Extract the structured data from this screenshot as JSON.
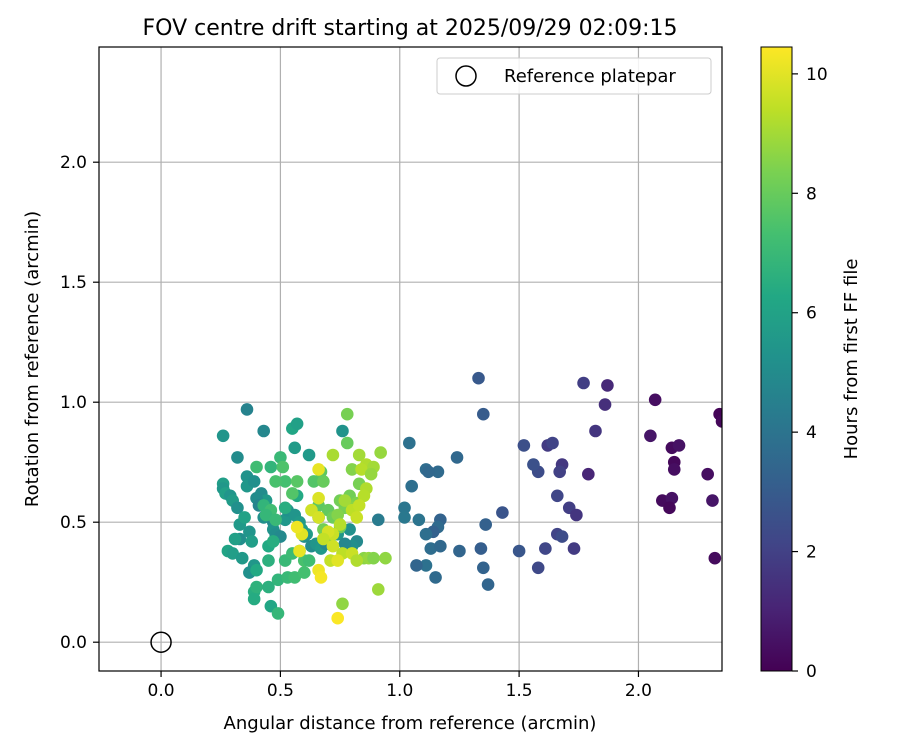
{
  "chart_data": {
    "type": "scatter",
    "title": "FOV centre drift starting at 2025/09/29 02:09:15",
    "xlabel": "Angular distance from reference (arcmin)",
    "ylabel": "Rotation from reference (arcmin)",
    "xlim": [
      -0.26,
      2.35
    ],
    "ylim": [
      -0.12,
      2.48
    ],
    "xticks": [
      0.0,
      0.5,
      1.0,
      1.5,
      2.0
    ],
    "xtick_labels": [
      "0.0",
      "0.5",
      "1.0",
      "1.5",
      "2.0"
    ],
    "yticks": [
      0.0,
      0.5,
      1.0,
      1.5,
      2.0
    ],
    "ytick_labels": [
      "0.0",
      "0.5",
      "1.0",
      "1.5",
      "2.0"
    ],
    "grid": true,
    "legend": {
      "placement": "top-right",
      "label": "Reference platepar"
    },
    "reference_point": {
      "x": 0.0,
      "y": 0.0
    },
    "colorbar": {
      "label": "Hours from first FF file",
      "colormap": "viridis",
      "range": [
        0,
        10.45
      ],
      "ticks": [
        0,
        2,
        4,
        6,
        8,
        10
      ],
      "tick_labels": [
        "0",
        "2",
        "4",
        "6",
        "8",
        "10"
      ]
    },
    "series": [
      {
        "name": "FOV centre",
        "points": [
          [
            2.34,
            0.95,
            0.1
          ],
          [
            2.35,
            0.92,
            0.2
          ],
          [
            2.07,
            1.01,
            0.4
          ],
          [
            2.05,
            0.86,
            0.6
          ],
          [
            2.14,
            0.81,
            0.3
          ],
          [
            2.17,
            0.82,
            0.5
          ],
          [
            2.15,
            0.75,
            0.2
          ],
          [
            2.15,
            0.72,
            0.4
          ],
          [
            2.1,
            0.59,
            0.3
          ],
          [
            2.14,
            0.6,
            0.5
          ],
          [
            2.13,
            0.56,
            0.2
          ],
          [
            2.29,
            0.7,
            0.4
          ],
          [
            2.31,
            0.59,
            0.6
          ],
          [
            2.32,
            0.35,
            0.3
          ],
          [
            1.87,
            1.07,
            1.2
          ],
          [
            1.86,
            0.99,
            1.4
          ],
          [
            1.82,
            0.88,
            1.6
          ],
          [
            1.79,
            0.7,
            1.1
          ],
          [
            1.77,
            1.08,
            1.9
          ],
          [
            1.68,
            0.74,
            1.7
          ],
          [
            1.67,
            0.71,
            2.0
          ],
          [
            1.62,
            0.82,
            1.8
          ],
          [
            1.64,
            0.83,
            2.1
          ],
          [
            1.66,
            0.61,
            2.2
          ],
          [
            1.71,
            0.56,
            1.9
          ],
          [
            1.74,
            0.53,
            1.6
          ],
          [
            1.73,
            0.39,
            1.8
          ],
          [
            1.66,
            0.45,
            2.1
          ],
          [
            1.68,
            0.44,
            2.4
          ],
          [
            1.61,
            0.39,
            2.2
          ],
          [
            1.58,
            0.31,
            2.3
          ],
          [
            1.58,
            0.71,
            2.4
          ],
          [
            1.56,
            0.74,
            2.6
          ],
          [
            1.52,
            0.82,
            2.5
          ],
          [
            1.5,
            0.38,
            2.8
          ],
          [
            1.33,
            1.1,
            2.9
          ],
          [
            1.35,
            0.95,
            3.0
          ],
          [
            1.43,
            0.54,
            2.7
          ],
          [
            1.36,
            0.49,
            3.2
          ],
          [
            1.34,
            0.39,
            3.1
          ],
          [
            1.35,
            0.31,
            3.3
          ],
          [
            1.37,
            0.24,
            3.4
          ],
          [
            1.24,
            0.77,
            3.5
          ],
          [
            1.25,
            0.38,
            3.4
          ],
          [
            1.16,
            0.71,
            3.6
          ],
          [
            1.11,
            0.72,
            3.7
          ],
          [
            1.12,
            0.71,
            3.5
          ],
          [
            1.05,
            0.65,
            3.8
          ],
          [
            1.04,
            0.83,
            3.9
          ],
          [
            1.17,
            0.51,
            3.3
          ],
          [
            1.16,
            0.48,
            3.6
          ],
          [
            1.14,
            0.46,
            3.2
          ],
          [
            1.11,
            0.45,
            3.8
          ],
          [
            1.08,
            0.51,
            4.0
          ],
          [
            1.13,
            0.39,
            3.7
          ],
          [
            1.17,
            0.4,
            3.5
          ],
          [
            1.15,
            0.27,
            3.6
          ],
          [
            1.11,
            0.32,
            3.9
          ],
          [
            1.07,
            0.32,
            3.4
          ],
          [
            1.02,
            0.56,
            4.1
          ],
          [
            1.02,
            0.52,
            4.2
          ],
          [
            0.91,
            0.51,
            4.3
          ],
          [
            0.26,
            0.86,
            5.4
          ],
          [
            0.32,
            0.77,
            5.0
          ],
          [
            0.36,
            0.69,
            5.3
          ],
          [
            0.36,
            0.65,
            5.5
          ],
          [
            0.39,
            0.67,
            5.2
          ],
          [
            0.42,
            0.62,
            5.0
          ],
          [
            0.44,
            0.59,
            5.6
          ],
          [
            0.26,
            0.66,
            5.8
          ],
          [
            0.26,
            0.64,
            5.5
          ],
          [
            0.27,
            0.62,
            5.9
          ],
          [
            0.29,
            0.61,
            5.4
          ],
          [
            0.3,
            0.59,
            5.7
          ],
          [
            0.32,
            0.56,
            5.2
          ],
          [
            0.33,
            0.49,
            5.6
          ],
          [
            0.33,
            0.43,
            5.1
          ],
          [
            0.31,
            0.43,
            5.9
          ],
          [
            0.35,
            0.52,
            6.0
          ],
          [
            0.37,
            0.46,
            5.4
          ],
          [
            0.38,
            0.42,
            5.8
          ],
          [
            0.39,
            0.32,
            5.5
          ],
          [
            0.37,
            0.29,
            5.2
          ],
          [
            0.28,
            0.38,
            6.1
          ],
          [
            0.3,
            0.37,
            5.8
          ],
          [
            0.34,
            0.35,
            5.6
          ],
          [
            0.36,
            0.97,
            4.6
          ],
          [
            0.43,
            0.88,
            4.8
          ],
          [
            0.4,
            0.6,
            5.0
          ],
          [
            0.41,
            0.57,
            4.7
          ],
          [
            0.43,
            0.52,
            5.2
          ],
          [
            0.47,
            0.5,
            4.9
          ],
          [
            0.47,
            0.47,
            5.3
          ],
          [
            0.48,
            0.45,
            5.1
          ],
          [
            0.5,
            0.44,
            4.9
          ],
          [
            0.52,
            0.51,
            5.5
          ],
          [
            0.53,
            0.55,
            5.2
          ],
          [
            0.56,
            0.53,
            5.4
          ],
          [
            0.58,
            0.5,
            5.6
          ],
          [
            0.59,
            0.47,
            5.8
          ],
          [
            0.61,
            0.45,
            5.7
          ],
          [
            0.6,
            0.44,
            5.2
          ],
          [
            0.63,
            0.4,
            5.0
          ],
          [
            0.65,
            0.41,
            5.4
          ],
          [
            0.67,
            0.39,
            5.6
          ],
          [
            0.66,
            0.52,
            4.8
          ],
          [
            0.69,
            0.41,
            4.9
          ],
          [
            0.74,
            0.45,
            5.5
          ],
          [
            0.76,
            0.88,
            5.3
          ],
          [
            0.79,
            0.47,
            5.2
          ],
          [
            0.82,
            0.42,
            4.9
          ],
          [
            0.8,
            0.4,
            5.1
          ],
          [
            0.77,
            0.41,
            4.8
          ],
          [
            0.55,
            0.89,
            6.2
          ],
          [
            0.57,
            0.91,
            5.9
          ],
          [
            0.56,
            0.81,
            5.7
          ],
          [
            0.62,
            0.78,
            5.6
          ],
          [
            0.57,
            0.61,
            6.3
          ],
          [
            0.52,
            0.56,
            6.5
          ],
          [
            0.4,
            0.3,
            6.3
          ],
          [
            0.39,
            0.21,
            6.5
          ],
          [
            0.39,
            0.18,
            6.4
          ],
          [
            0.4,
            0.23,
            6.7
          ],
          [
            0.45,
            0.23,
            6.6
          ],
          [
            0.46,
            0.15,
            6.2
          ],
          [
            0.49,
            0.12,
            6.9
          ],
          [
            0.49,
            0.26,
            6.8
          ],
          [
            0.53,
            0.27,
            7.0
          ],
          [
            0.56,
            0.27,
            7.2
          ],
          [
            0.45,
            0.34,
            6.6
          ],
          [
            0.45,
            0.4,
            6.3
          ],
          [
            0.47,
            0.42,
            6.5
          ],
          [
            0.52,
            0.34,
            7.0
          ],
          [
            0.55,
            0.37,
            7.1
          ],
          [
            0.58,
            0.38,
            6.8
          ],
          [
            0.6,
            0.34,
            7.4
          ],
          [
            0.62,
            0.34,
            7.2
          ],
          [
            0.6,
            0.29,
            7.3
          ],
          [
            0.43,
            0.57,
            6.8
          ],
          [
            0.46,
            0.55,
            7.2
          ],
          [
            0.44,
            0.53,
            6.9
          ],
          [
            0.48,
            0.51,
            7.0
          ],
          [
            0.4,
            0.73,
            7.2
          ],
          [
            0.46,
            0.73,
            6.8
          ],
          [
            0.5,
            0.77,
            7.0
          ],
          [
            0.51,
            0.73,
            7.5
          ],
          [
            0.52,
            0.67,
            7.3
          ],
          [
            0.55,
            0.62,
            7.6
          ],
          [
            0.48,
            0.67,
            7.4
          ],
          [
            0.57,
            0.67,
            7.7
          ],
          [
            0.64,
            0.67,
            7.6
          ],
          [
            0.67,
            0.71,
            7.8
          ],
          [
            0.68,
            0.67,
            8.0
          ],
          [
            0.66,
            0.57,
            7.8
          ],
          [
            0.7,
            0.55,
            7.9
          ],
          [
            0.72,
            0.52,
            8.1
          ],
          [
            0.68,
            0.47,
            8.2
          ],
          [
            0.71,
            0.44,
            8.0
          ],
          [
            0.78,
            0.95,
            8.3
          ],
          [
            0.78,
            0.83,
            8.0
          ],
          [
            0.8,
            0.72,
            8.5
          ],
          [
            0.83,
            0.66,
            8.3
          ],
          [
            0.79,
            0.61,
            8.2
          ],
          [
            0.82,
            0.58,
            8.4
          ],
          [
            0.8,
            0.56,
            8.6
          ],
          [
            0.77,
            0.56,
            8.3
          ],
          [
            0.75,
            0.59,
            8.2
          ],
          [
            0.74,
            0.53,
            8.5
          ],
          [
            0.75,
            0.48,
            8.1
          ],
          [
            0.76,
            0.16,
            8.7
          ],
          [
            0.85,
            0.35,
            8.6
          ],
          [
            0.87,
            0.35,
            8.8
          ],
          [
            0.89,
            0.35,
            8.5
          ],
          [
            0.91,
            0.22,
            8.9
          ],
          [
            0.94,
            0.35,
            8.7
          ],
          [
            0.92,
            0.79,
            8.8
          ],
          [
            0.72,
            0.78,
            9.1
          ],
          [
            0.83,
            0.78,
            9.0
          ],
          [
            0.86,
            0.74,
            9.2
          ],
          [
            0.84,
            0.72,
            9.3
          ],
          [
            0.89,
            0.73,
            9.0
          ],
          [
            0.88,
            0.7,
            8.8
          ],
          [
            0.86,
            0.64,
            9.2
          ],
          [
            0.85,
            0.61,
            9.3
          ],
          [
            0.77,
            0.59,
            9.0
          ],
          [
            0.8,
            0.55,
            9.4
          ],
          [
            0.83,
            0.57,
            9.5
          ],
          [
            0.82,
            0.52,
            9.6
          ],
          [
            0.75,
            0.49,
            9.3
          ],
          [
            0.72,
            0.45,
            9.6
          ],
          [
            0.7,
            0.46,
            9.8
          ],
          [
            0.68,
            0.43,
            9.5
          ],
          [
            0.72,
            0.4,
            9.7
          ],
          [
            0.76,
            0.37,
            9.4
          ],
          [
            0.8,
            0.37,
            9.6
          ],
          [
            0.82,
            0.34,
            9.2
          ],
          [
            0.71,
            0.34,
            9.5
          ],
          [
            0.63,
            0.55,
            9.7
          ],
          [
            0.66,
            0.52,
            9.8
          ],
          [
            0.66,
            0.6,
            9.9
          ],
          [
            0.66,
            0.72,
            10.1
          ],
          [
            0.59,
            0.45,
            10.0
          ],
          [
            0.57,
            0.48,
            10.2
          ],
          [
            0.58,
            0.38,
            10.1
          ],
          [
            0.66,
            0.3,
            10.2
          ],
          [
            0.67,
            0.27,
            10.3
          ],
          [
            0.74,
            0.34,
            10.0
          ],
          [
            0.74,
            0.1,
            10.4
          ]
        ]
      }
    ]
  }
}
